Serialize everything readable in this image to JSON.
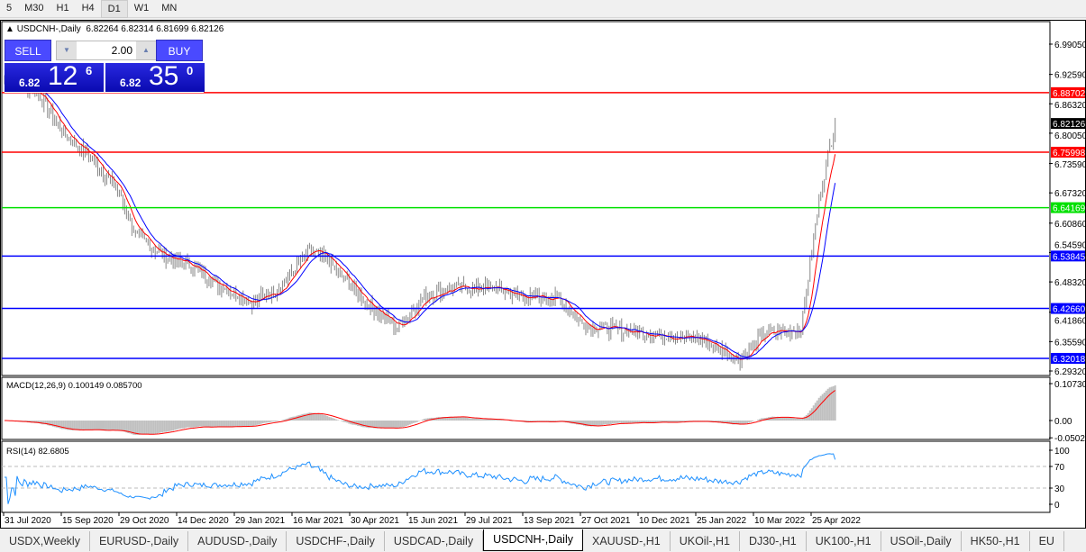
{
  "timeframes": [
    "5",
    "M30",
    "H1",
    "H4",
    "D1",
    "W1",
    "MN"
  ],
  "active_timeframe": "D1",
  "chart": {
    "title": "USDCNH-,Daily",
    "ohlc": "6.82264 6.82314 6.81699 6.82126"
  },
  "trade_panel": {
    "sell_label": "SELL",
    "buy_label": "BUY",
    "lot": "2.00",
    "sell_prefix": "6.82",
    "sell_big": "12",
    "sell_sup": "6",
    "buy_prefix": "6.82",
    "buy_big": "35",
    "buy_sup": "0"
  },
  "macd": {
    "label": "MACD(12,26,9) 0.100149 0.085700",
    "ticks": [
      "0.107305",
      "0.00",
      "-0.05021"
    ]
  },
  "rsi": {
    "label": "RSI(14) 82.6805",
    "ticks": [
      "100",
      "70",
      "30",
      "0"
    ]
  },
  "colors": {
    "bull_bar": "#808080",
    "ma_fast": "#ff0000",
    "ma_slow": "#0000ff",
    "rsi": "#1e90ff",
    "macd_hist": "#c0c0c0",
    "macd_signal": "#ff0000"
  },
  "chart_data": {
    "type": "ohlc-bar",
    "symbol": "USDCNH-",
    "timeframe": "Daily",
    "ylim": [
      6.2932,
      6.9905
    ],
    "price_ticks": [
      "6.99050",
      "6.92590",
      "6.86320",
      "6.80050",
      "6.73590",
      "6.67320",
      "6.60860",
      "6.54590",
      "6.48320",
      "6.41860",
      "6.35590",
      "6.29320"
    ],
    "current_price": "6.82126",
    "levels": [
      {
        "value": "6.88702",
        "color": "#ff0000"
      },
      {
        "value": "6.75998",
        "color": "#ff0000"
      },
      {
        "value": "6.64169",
        "color": "#00e000"
      },
      {
        "value": "6.53845",
        "color": "#0000ff"
      },
      {
        "value": "6.42660",
        "color": "#0000ff"
      },
      {
        "value": "6.32018",
        "color": "#0000ff"
      }
    ],
    "date_labels": [
      "31 Jul 2020",
      "15 Sep 2020",
      "29 Oct 2020",
      "14 Dec 2020",
      "29 Jan 2021",
      "16 Mar 2021",
      "30 Apr 2021",
      "15 Jun 2021",
      "29 Jul 2021",
      "13 Sep 2021",
      "27 Oct 2021",
      "10 Dec 2021",
      "25 Jan 2022",
      "10 Mar 2022",
      "25 Apr 2022"
    ],
    "close_path": [
      [
        "2020-07-31",
        6.92
      ],
      [
        "2020-08-25",
        6.89
      ],
      [
        "2020-09-15",
        6.8
      ],
      [
        "2020-10-06",
        6.75
      ],
      [
        "2020-10-27",
        6.68
      ],
      [
        "2020-11-10",
        6.585
      ],
      [
        "2020-12-01",
        6.54
      ],
      [
        "2020-12-22",
        6.52
      ],
      [
        "2021-01-12",
        6.48
      ],
      [
        "2021-02-09",
        6.44
      ],
      [
        "2021-03-02",
        6.47
      ],
      [
        "2021-03-26",
        6.55
      ],
      [
        "2021-04-09",
        6.53
      ],
      [
        "2021-05-05",
        6.45
      ],
      [
        "2021-06-02",
        6.385
      ],
      [
        "2021-06-23",
        6.45
      ],
      [
        "2021-07-14",
        6.47
      ],
      [
        "2021-08-18",
        6.47
      ],
      [
        "2021-09-08",
        6.45
      ],
      [
        "2021-10-06",
        6.45
      ],
      [
        "2021-10-27",
        6.39
      ],
      [
        "2021-12-01",
        6.378
      ],
      [
        "2021-12-29",
        6.37
      ],
      [
        "2022-01-27",
        6.36
      ],
      [
        "2022-02-24",
        6.317
      ],
      [
        "2022-03-17",
        6.374
      ],
      [
        "2022-04-14",
        6.383
      ],
      [
        "2022-04-21",
        6.53
      ],
      [
        "2022-04-28",
        6.66
      ],
      [
        "2022-05-05",
        6.76
      ],
      [
        "2022-05-11",
        6.82126
      ]
    ]
  },
  "tabs": [
    "USDX,Weekly",
    "EURUSD-,Daily",
    "AUDUSD-,Daily",
    "USDCHF-,Daily",
    "USDCAD-,Daily",
    "USDCNH-,Daily",
    "XAUUSD-,H1",
    "UKOil-,H1",
    "DJ30-,H1",
    "UK100-,H1",
    "USOil-,Daily",
    "HK50-,H1",
    "EU"
  ],
  "active_tab": "USDCNH-,Daily"
}
